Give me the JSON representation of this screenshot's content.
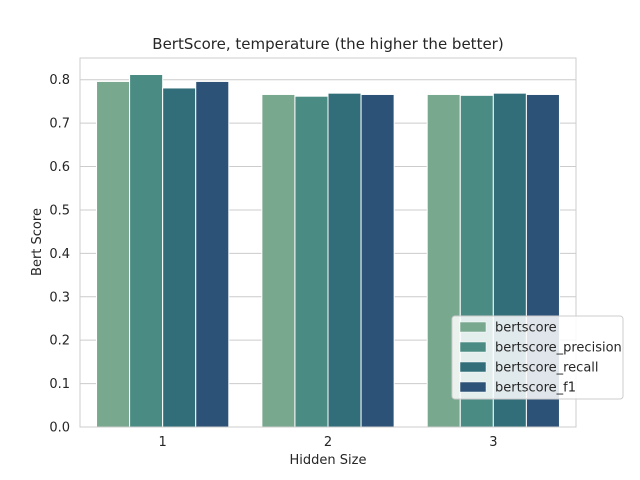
{
  "chart_data": {
    "type": "bar",
    "title": "BertScore, temperature (the higher the better)",
    "xlabel": "Hidden Size",
    "ylabel": "Bert Score",
    "categories": [
      "1",
      "2",
      "3"
    ],
    "ylim": [
      0,
      0.85
    ],
    "yticks": [
      0.0,
      0.1,
      0.2,
      0.3,
      0.4,
      0.5,
      0.6,
      0.7,
      0.8
    ],
    "ytick_labels": [
      "0.0",
      "0.1",
      "0.2",
      "0.3",
      "0.4",
      "0.5",
      "0.6",
      "0.7",
      "0.8"
    ],
    "grid": true,
    "legend_position": "lower-right",
    "series": [
      {
        "name": "bertscore",
        "color": "#78a98f",
        "values": [
          0.796,
          0.766,
          0.766
        ]
      },
      {
        "name": "bertscore_precision",
        "color": "#4a8c84",
        "values": [
          0.812,
          0.762,
          0.764
        ]
      },
      {
        "name": "bertscore_recall",
        "color": "#316e7a",
        "values": [
          0.781,
          0.769,
          0.769
        ]
      },
      {
        "name": "bertscore_f1",
        "color": "#2c5277",
        "values": [
          0.796,
          0.766,
          0.766
        ]
      }
    ]
  }
}
